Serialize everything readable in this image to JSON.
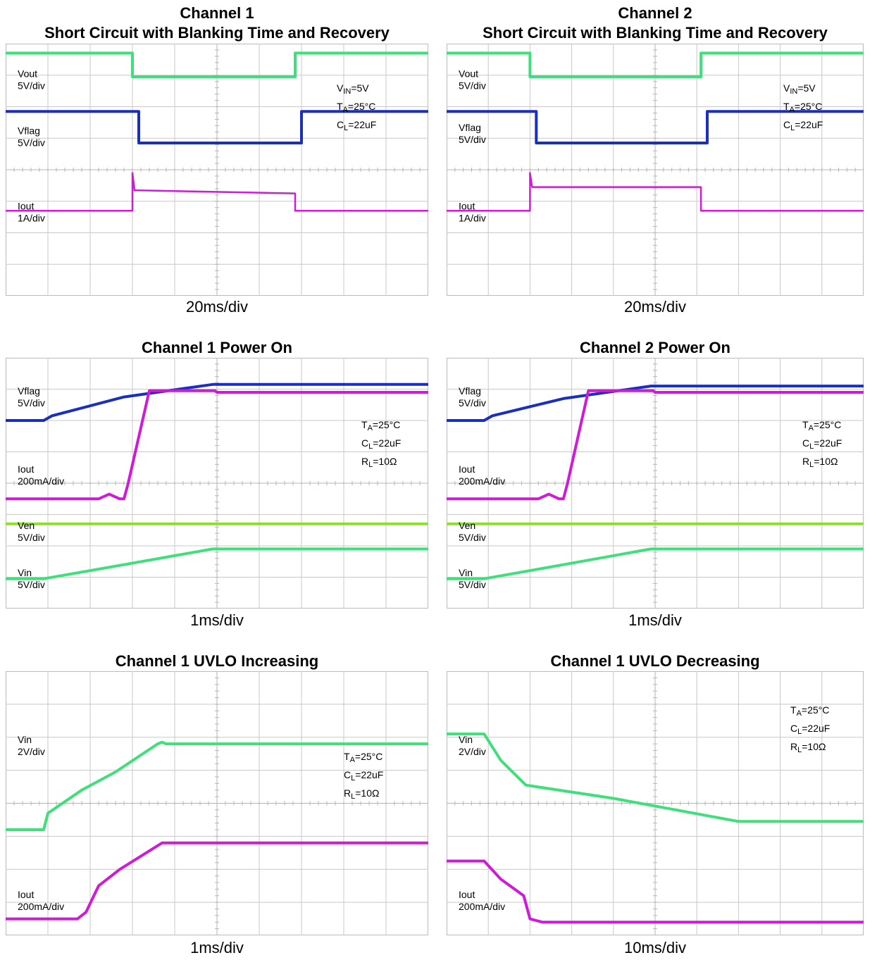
{
  "colors": {
    "green": "#3fe07a",
    "lime": "#8fdf2a",
    "blue": "#1a2fc0",
    "magenta": "#d01ad8",
    "grid": "#c8c8c8",
    "frame": "#bbbbbb"
  },
  "chart_data": [
    {
      "type": "line",
      "title_lines": [
        "Channel 1",
        "Short Circuit with Blanking Time and Recovery"
      ],
      "time_div": "20ms/div",
      "divisions": {
        "x": 10,
        "y": 8
      },
      "conditions": [
        {
          "sym": "V",
          "sub": "IN",
          "rest": "=5V"
        },
        {
          "sym": "T",
          "sub": "A",
          "rest": "=25°C"
        },
        {
          "sym": "C",
          "sub": "L",
          "rest": "=22uF"
        }
      ],
      "traces": [
        {
          "name": "Vout",
          "scale": "5V/div",
          "color": "green",
          "label_y": 1.2,
          "points": [
            [
              0,
              0.3
            ],
            [
              3.0,
              0.3
            ],
            [
              3.0,
              1.05
            ],
            [
              6.85,
              1.05
            ],
            [
              6.85,
              0.3
            ],
            [
              10,
              0.3
            ]
          ]
        },
        {
          "name": "Vflag",
          "scale": "5V/div",
          "color": "blue",
          "label_y": 3.0,
          "points": [
            [
              0,
              2.15
            ],
            [
              3.15,
              2.15
            ],
            [
              3.15,
              3.15
            ],
            [
              7.0,
              3.15
            ],
            [
              7.0,
              2.15
            ],
            [
              10,
              2.15
            ]
          ]
        },
        {
          "name": "Iout",
          "scale": "1A/div",
          "color": "magenta",
          "label_y": 5.4,
          "points": [
            [
              0,
              5.3
            ],
            [
              3.0,
              5.3
            ],
            [
              3.0,
              4.1
            ],
            [
              3.05,
              4.65
            ],
            [
              6.85,
              4.75
            ],
            [
              6.85,
              5.3
            ],
            [
              10,
              5.3
            ]
          ]
        }
      ]
    },
    {
      "type": "line",
      "title_lines": [
        "Channel 2",
        "Short Circuit with Blanking Time and Recovery"
      ],
      "time_div": "20ms/div",
      "divisions": {
        "x": 10,
        "y": 8
      },
      "conditions": [
        {
          "sym": "V",
          "sub": "IN",
          "rest": "=5V"
        },
        {
          "sym": "T",
          "sub": "A",
          "rest": "=25°C"
        },
        {
          "sym": "C",
          "sub": "L",
          "rest": "=22uF"
        }
      ],
      "traces": [
        {
          "name": "Vout",
          "scale": "5V/div",
          "color": "green",
          "label_y": 1.2,
          "points": [
            [
              0,
              0.3
            ],
            [
              2.0,
              0.3
            ],
            [
              2.0,
              1.05
            ],
            [
              6.1,
              1.05
            ],
            [
              6.1,
              0.3
            ],
            [
              10,
              0.3
            ]
          ]
        },
        {
          "name": "Vflag",
          "scale": "5V/div",
          "color": "blue",
          "label_y": 2.9,
          "points": [
            [
              0,
              2.15
            ],
            [
              2.15,
              2.15
            ],
            [
              2.15,
              3.15
            ],
            [
              6.25,
              3.15
            ],
            [
              6.25,
              2.15
            ],
            [
              10,
              2.15
            ]
          ]
        },
        {
          "name": "Iout",
          "scale": "1A/div",
          "color": "magenta",
          "label_y": 5.4,
          "points": [
            [
              0,
              5.3
            ],
            [
              2.0,
              5.3
            ],
            [
              2.0,
              4.1
            ],
            [
              2.05,
              4.55
            ],
            [
              6.1,
              4.55
            ],
            [
              6.1,
              5.3
            ],
            [
              10,
              5.3
            ]
          ]
        }
      ]
    },
    {
      "type": "line",
      "title_lines": [
        "Channel 1 Power On"
      ],
      "time_div": "1ms/div",
      "divisions": {
        "x": 10,
        "y": 8
      },
      "conditions": [
        {
          "sym": "T",
          "sub": "A",
          "rest": "=25°C"
        },
        {
          "sym": "C",
          "sub": "L",
          "rest": "=22uF"
        },
        {
          "sym": "R",
          "sub": "L",
          "rest": "=10Ω"
        }
      ],
      "traces": [
        {
          "name": "Vflag",
          "scale": "5V/div",
          "color": "blue",
          "label_y": 1.3,
          "points": [
            [
              0,
              2.0
            ],
            [
              0.9,
              2.0
            ],
            [
              1.1,
              1.85
            ],
            [
              2.8,
              1.25
            ],
            [
              4.9,
              0.85
            ],
            [
              10,
              0.85
            ]
          ]
        },
        {
          "name": "Iout",
          "scale": "200mA/div",
          "color": "magenta",
          "label_y": 3.8,
          "points": [
            [
              0,
              4.5
            ],
            [
              2.2,
              4.5
            ],
            [
              2.45,
              4.35
            ],
            [
              2.7,
              4.5
            ],
            [
              2.8,
              4.5
            ],
            [
              2.9,
              4.0
            ],
            [
              3.4,
              1.05
            ],
            [
              4.95,
              1.05
            ],
            [
              5.0,
              1.1
            ],
            [
              10,
              1.1
            ]
          ]
        },
        {
          "name": "Ven",
          "scale": "5V/div",
          "color": "lime",
          "label_y": 5.6,
          "points": [
            [
              0,
              5.3
            ],
            [
              10,
              5.3
            ]
          ]
        },
        {
          "name": "Vin",
          "scale": "5V/div",
          "color": "green",
          "label_y": 7.1,
          "points": [
            [
              0,
              7.05
            ],
            [
              0.9,
              7.05
            ],
            [
              2.8,
              6.6
            ],
            [
              4.9,
              6.1
            ],
            [
              10,
              6.1
            ]
          ]
        }
      ]
    },
    {
      "type": "line",
      "title_lines": [
        "Channel 2 Power On"
      ],
      "time_div": "1ms/div",
      "divisions": {
        "x": 10,
        "y": 8
      },
      "conditions": [
        {
          "sym": "T",
          "sub": "A",
          "rest": "=25°C"
        },
        {
          "sym": "C",
          "sub": "L",
          "rest": "=22uF"
        },
        {
          "sym": "R",
          "sub": "L",
          "rest": "=10Ω"
        }
      ],
      "traces": [
        {
          "name": "Vflag",
          "scale": "5V/div",
          "color": "blue",
          "label_y": 1.3,
          "points": [
            [
              0,
              2.0
            ],
            [
              0.9,
              2.0
            ],
            [
              1.1,
              1.85
            ],
            [
              2.8,
              1.3
            ],
            [
              4.9,
              0.9
            ],
            [
              10,
              0.9
            ]
          ]
        },
        {
          "name": "Iout",
          "scale": "200mA/div",
          "color": "magenta",
          "label_y": 3.8,
          "points": [
            [
              0,
              4.5
            ],
            [
              2.2,
              4.5
            ],
            [
              2.45,
              4.35
            ],
            [
              2.7,
              4.5
            ],
            [
              2.8,
              4.5
            ],
            [
              2.9,
              4.0
            ],
            [
              3.4,
              1.05
            ],
            [
              4.95,
              1.05
            ],
            [
              5.0,
              1.1
            ],
            [
              10,
              1.1
            ]
          ]
        },
        {
          "name": "Ven",
          "scale": "5V/div",
          "color": "lime",
          "label_y": 5.6,
          "points": [
            [
              0,
              5.3
            ],
            [
              10,
              5.3
            ]
          ]
        },
        {
          "name": "Vin",
          "scale": "5V/div",
          "color": "green",
          "label_y": 7.1,
          "points": [
            [
              0,
              7.05
            ],
            [
              0.9,
              7.05
            ],
            [
              2.8,
              6.6
            ],
            [
              4.9,
              6.1
            ],
            [
              10,
              6.1
            ]
          ]
        }
      ]
    },
    {
      "type": "line",
      "title_lines": [
        "Channel 1 UVLO Increasing"
      ],
      "time_div": "1ms/div",
      "divisions": {
        "x": 10,
        "y": 8
      },
      "conditions": [
        {
          "sym": "T",
          "sub": "A",
          "rest": "=25°C"
        },
        {
          "sym": "C",
          "sub": "L",
          "rest": "=22uF"
        },
        {
          "sym": "R",
          "sub": "L",
          "rest": "=10Ω"
        }
      ],
      "traces": [
        {
          "name": "Vin",
          "scale": "2V/div",
          "color": "green",
          "label_y": 2.3,
          "points": [
            [
              0,
              4.8
            ],
            [
              0.9,
              4.8
            ],
            [
              1.0,
              4.3
            ],
            [
              1.8,
              3.6
            ],
            [
              2.6,
              3.05
            ],
            [
              3.6,
              2.2
            ],
            [
              3.7,
              2.15
            ],
            [
              3.8,
              2.2
            ],
            [
              10,
              2.2
            ]
          ]
        },
        {
          "name": "Iout",
          "scale": "200mA/div",
          "color": "magenta",
          "label_y": 7.0,
          "points": [
            [
              0,
              7.5
            ],
            [
              1.7,
              7.5
            ],
            [
              1.9,
              7.3
            ],
            [
              2.2,
              6.5
            ],
            [
              2.7,
              6.0
            ],
            [
              3.7,
              5.2
            ],
            [
              10,
              5.2
            ]
          ]
        }
      ]
    },
    {
      "type": "line",
      "title_lines": [
        "Channel 1 UVLO Decreasing"
      ],
      "time_div": "10ms/div",
      "divisions": {
        "x": 10,
        "y": 8
      },
      "conditions": [
        {
          "sym": "T",
          "sub": "A",
          "rest": "=25°C"
        },
        {
          "sym": "C",
          "sub": "L",
          "rest": "=22uF"
        },
        {
          "sym": "R",
          "sub": "L",
          "rest": "=10Ω"
        }
      ],
      "traces": [
        {
          "name": "Vin",
          "scale": "2V/div",
          "color": "green",
          "label_y": 2.3,
          "points": [
            [
              0,
              1.9
            ],
            [
              0.9,
              1.9
            ],
            [
              1.3,
              2.7
            ],
            [
              1.9,
              3.45
            ],
            [
              4.0,
              3.85
            ],
            [
              7.0,
              4.55
            ],
            [
              10,
              4.55
            ]
          ]
        },
        {
          "name": "Iout",
          "scale": "200mA/div",
          "color": "magenta",
          "label_y": 7.0,
          "points": [
            [
              0,
              5.75
            ],
            [
              0.9,
              5.75
            ],
            [
              1.3,
              6.3
            ],
            [
              1.85,
              6.8
            ],
            [
              2.0,
              7.5
            ],
            [
              2.3,
              7.6
            ],
            [
              10,
              7.6
            ]
          ]
        }
      ]
    }
  ]
}
